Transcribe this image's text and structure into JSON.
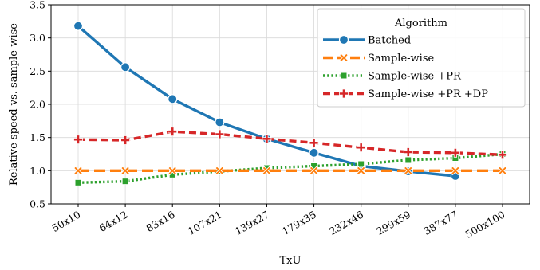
{
  "chart_data": {
    "type": "line",
    "xlabel": "TxU",
    "ylabel": "Relative speed vs. sample-wise",
    "categories": [
      "50x10",
      "64x12",
      "83x16",
      "107x21",
      "139x27",
      "179x35",
      "232x46",
      "299x59",
      "387x77",
      "500x100"
    ],
    "ylim": [
      0.5,
      3.5
    ],
    "yticks": [
      "0.5",
      "1.0",
      "1.5",
      "2.0",
      "2.5",
      "3.0",
      "3.5"
    ],
    "grid": true,
    "legend": {
      "title": "Algorithm",
      "placement": "top-right"
    },
    "series": [
      {
        "name": "Batched",
        "color": "#1f77b4",
        "marker": "circle",
        "dash": "solid",
        "values": [
          3.18,
          2.56,
          2.08,
          1.73,
          1.48,
          1.27,
          1.07,
          0.99,
          0.92,
          null
        ]
      },
      {
        "name": "Sample-wise",
        "color": "#ff7f0e",
        "marker": "x",
        "dash": "long-dash",
        "values": [
          1.0,
          1.0,
          1.0,
          1.0,
          1.0,
          1.0,
          1.0,
          1.0,
          1.0,
          1.0
        ]
      },
      {
        "name": "Sample-wise +PR",
        "color": "#2ca02c",
        "marker": "square",
        "dash": "dotted",
        "values": [
          0.82,
          0.84,
          0.94,
          0.99,
          1.04,
          1.07,
          1.1,
          1.16,
          1.19,
          1.25
        ]
      },
      {
        "name": "Sample-wise +PR +DP",
        "color": "#d62728",
        "marker": "plus",
        "dash": "dash",
        "values": [
          1.47,
          1.46,
          1.59,
          1.55,
          1.48,
          1.42,
          1.35,
          1.28,
          1.27,
          1.24
        ]
      }
    ]
  }
}
